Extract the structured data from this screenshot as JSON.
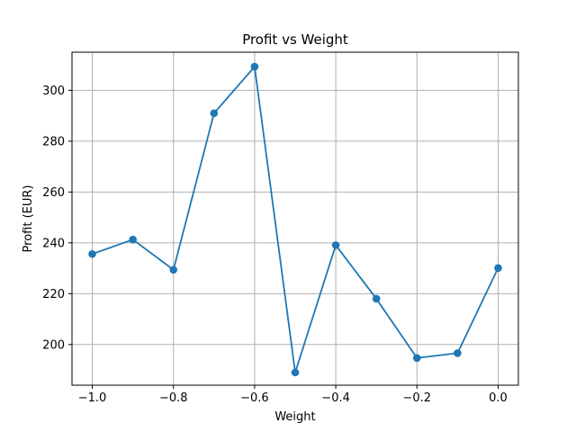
{
  "chart_data": {
    "type": "line",
    "title": "Profit vs Weight",
    "xlabel": "Weight",
    "ylabel": "Profit (EUR)",
    "x": [
      -1.0,
      -0.9,
      -0.8,
      -0.7,
      -0.6,
      -0.5,
      -0.4,
      -0.3,
      -0.2,
      -0.1,
      0.0
    ],
    "series": [
      {
        "values": [
          235.6,
          241.3,
          229.4,
          291.0,
          309.3,
          189.0,
          239.1,
          218.0,
          194.7,
          196.6,
          230.1
        ],
        "color": "#1f77b4",
        "marker": "circle"
      }
    ],
    "xlim": [
      -1.05,
      0.05
    ],
    "ylim": [
      184.0,
      315.0
    ],
    "xticks": [
      -1.0,
      -0.8,
      -0.6,
      -0.4,
      -0.2,
      0.0
    ],
    "xtick_labels": [
      "−1.0",
      "−0.8",
      "−0.6",
      "−0.4",
      "−0.2",
      "0.0"
    ],
    "yticks": [
      200,
      220,
      240,
      260,
      280,
      300
    ],
    "ytick_labels": [
      "200",
      "220",
      "240",
      "260",
      "280",
      "300"
    ],
    "grid": true,
    "grid_color": "#b0b0b0",
    "legend": "none"
  }
}
